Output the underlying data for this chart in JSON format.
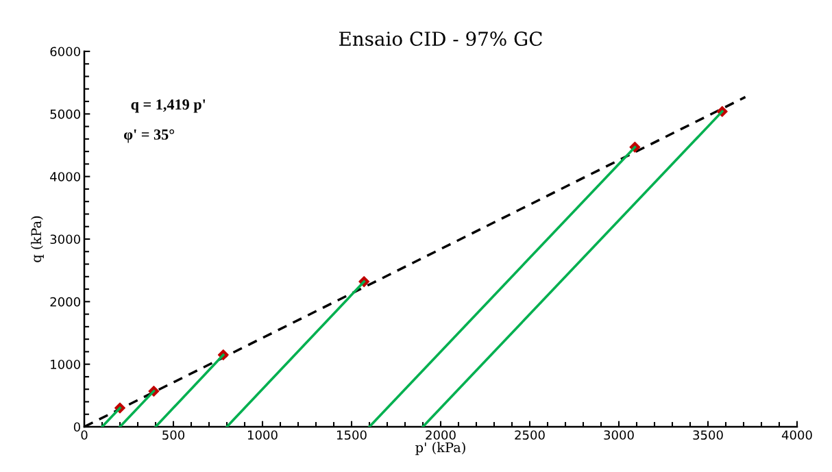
{
  "chart_data": {
    "type": "line",
    "title": "Ensaio CID - 97% GC",
    "xlabel": "p' (kPa)",
    "ylabel": "q (kPa)",
    "xlim": [
      0,
      4000
    ],
    "xticks": [
      0,
      500,
      1000,
      1500,
      2000,
      2500,
      3000,
      3500,
      4000
    ],
    "ylim": [
      0,
      6000
    ],
    "yticks": [
      0,
      1000,
      2000,
      3000,
      4000,
      5000,
      6000
    ],
    "grid": false,
    "legend": false,
    "annotations": [
      "q = 1,419 p'",
      "φ' = 35°"
    ],
    "series": [
      {
        "color": "#000000",
        "line_style": "dashed",
        "marker": "none",
        "x": [
          0,
          3710
        ],
        "values": [
          0,
          5270
        ]
      },
      {
        "color": "#00b050",
        "line_style": "solid",
        "marker": "none",
        "x": [
          100,
          200
        ],
        "values": [
          0,
          300
        ]
      },
      {
        "color": "#00b050",
        "line_style": "solid",
        "marker": "none",
        "x": [
          200,
          390
        ],
        "values": [
          0,
          570
        ]
      },
      {
        "color": "#00b050",
        "line_style": "solid",
        "marker": "none",
        "x": [
          400,
          780
        ],
        "values": [
          0,
          1150
        ]
      },
      {
        "color": "#00b050",
        "line_style": "solid",
        "marker": "none",
        "x": [
          800,
          1570
        ],
        "values": [
          0,
          2320
        ]
      },
      {
        "color": "#00b050",
        "line_style": "solid",
        "marker": "none",
        "x": [
          1600,
          3090
        ],
        "values": [
          0,
          4470
        ]
      },
      {
        "color": "#00b050",
        "line_style": "solid",
        "marker": "none",
        "x": [
          1900,
          3580
        ],
        "values": [
          0,
          5040
        ]
      },
      {
        "type": "scatter",
        "color": "#c00000",
        "marker": "diamond",
        "x": [
          200,
          390,
          780,
          1570,
          3090,
          3580
        ],
        "values": [
          300,
          570,
          1150,
          2320,
          4470,
          5040
        ]
      }
    ]
  }
}
